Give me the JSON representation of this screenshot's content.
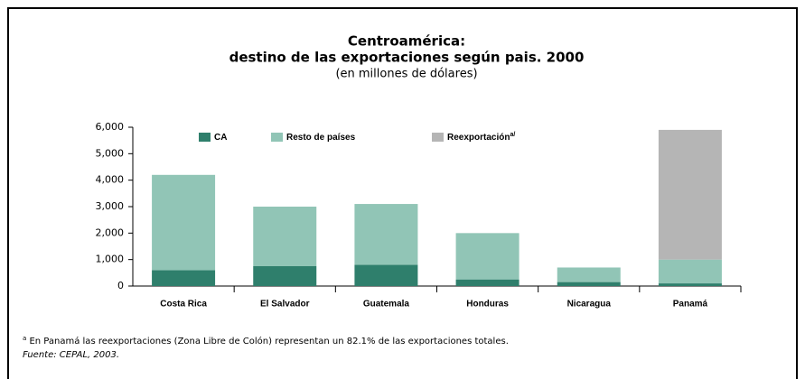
{
  "chart_data": {
    "type": "stacked_bar",
    "title": "Centroamérica:",
    "subtitle": "destino de las exportaciones según pais. 2000",
    "units": "(en millones de dólares)",
    "categories": [
      "Costa Rica",
      "El Salvador",
      "Guatemala",
      "Honduras",
      "Nicaragua",
      "Panamá"
    ],
    "series": [
      {
        "name": "CA",
        "color": "#2f7f6c",
        "values": [
          600,
          750,
          800,
          250,
          150,
          100
        ]
      },
      {
        "name": "Resto de países",
        "color": "#91c5b6",
        "values": [
          3600,
          2250,
          2300,
          1750,
          550,
          900
        ]
      },
      {
        "name": "Reexportación",
        "legend_note": "a/",
        "color": "#b5b5b5",
        "values": [
          0,
          0,
          0,
          0,
          0,
          4900
        ]
      }
    ],
    "ylim": [
      0,
      6000
    ],
    "yticks": [
      0,
      {
        "value": 1000,
        "label": "1,000"
      },
      {
        "value": 2000,
        "label": "2,000"
      },
      {
        "value": 3000,
        "label": "3,000"
      },
      {
        "value": 4000,
        "label": "4,000"
      },
      {
        "value": 5000,
        "label": "5,000"
      },
      {
        "value": 6000,
        "label": "6,000"
      }
    ],
    "footnote_marker": "a",
    "footnote": " En Panamá las reexportaciones (Zona Libre de Colón) representan un 82.1% de las exportaciones totales.",
    "source": "Fuente: CEPAL, 2003."
  }
}
